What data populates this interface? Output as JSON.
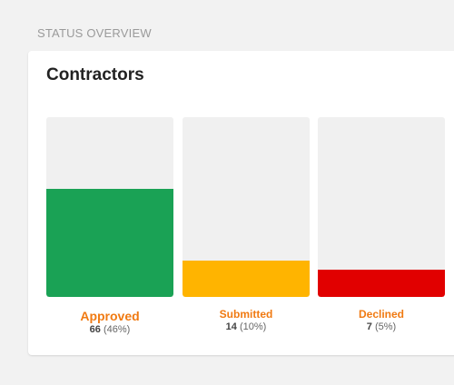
{
  "section_label": "STATUS OVERVIEW",
  "card": {
    "title": "Contractors",
    "bars": [
      {
        "label": "Approved",
        "count": "66",
        "percent": "(46%)",
        "fill_fraction": 0.6,
        "color": "#1aa255",
        "label_color": "#f07a12"
      },
      {
        "label": "Submitted",
        "count": "14",
        "percent": "(10%)",
        "fill_fraction": 0.2,
        "color": "#ffb400",
        "label_color": "#f07a12"
      },
      {
        "label": "Declined",
        "count": "7",
        "percent": "(5%)",
        "fill_fraction": 0.15,
        "color": "#e10000",
        "label_color": "#f07a12"
      }
    ]
  }
}
